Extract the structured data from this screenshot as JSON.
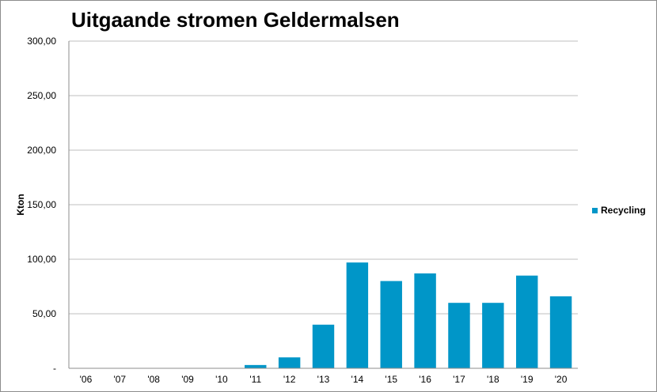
{
  "chart_data": {
    "type": "bar",
    "title": "Uitgaande stromen Geldermalsen",
    "xlabel": "",
    "ylabel": "Kton",
    "categories": [
      "'06",
      "'07",
      "'08",
      "'09",
      "'10",
      "'11",
      "'12",
      "'13",
      "'14",
      "'15",
      "'16",
      "'17",
      "'18",
      "'19",
      "'20"
    ],
    "series": [
      {
        "name": "Recycling",
        "color": "#0096c8",
        "values": [
          0,
          0,
          0,
          0,
          0,
          3,
          10,
          40,
          97,
          80,
          87,
          60,
          60,
          85,
          66
        ]
      }
    ],
    "ylim": [
      0,
      300
    ],
    "yticks": [
      "-",
      "50,00",
      "100,00",
      "150,00",
      "200,00",
      "250,00",
      "300,00"
    ],
    "ytick_values": [
      0,
      50,
      100,
      150,
      200,
      250,
      300
    ],
    "grid": true,
    "legend": "right"
  }
}
